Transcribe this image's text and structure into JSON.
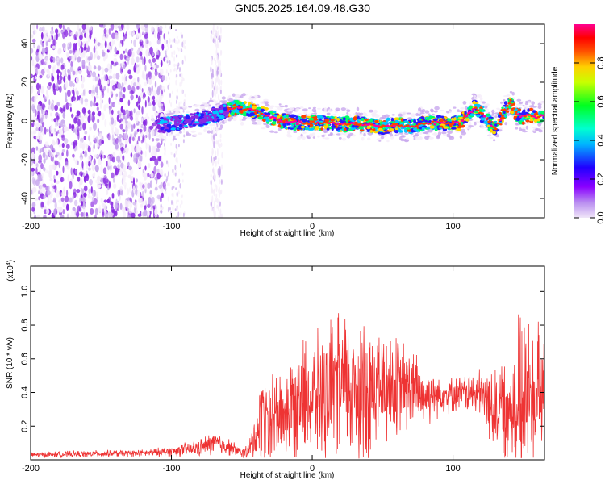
{
  "title": "GN05.2025.164.09.48.G30",
  "chart_data": [
    {
      "type": "heatmap",
      "xlabel": "Height of straight line (km)",
      "ylabel": "Frequency (Hz)",
      "xlim": [
        -200,
        165
      ],
      "ylim": [
        -50,
        50
      ],
      "xticks": [
        -200,
        -100,
        0,
        100
      ],
      "yticks": [
        -40,
        -20,
        0,
        20,
        40
      ],
      "colorbar": {
        "label": "Normalized spectral amplitude",
        "range": [
          0,
          1
        ],
        "ticks": [
          0.0,
          0.2,
          0.4,
          0.6,
          0.8
        ]
      },
      "ridge": {
        "x": [
          -105,
          -95,
          -85,
          -75,
          -65,
          -55,
          -45,
          -38,
          -30,
          -20,
          -10,
          0,
          10,
          20,
          30,
          40,
          50,
          60,
          70,
          80,
          90,
          100,
          105,
          110,
          115,
          120,
          125,
          130,
          135,
          140,
          145,
          150,
          155,
          160,
          165
        ],
        "freq": [
          -2,
          -1,
          0,
          2,
          4,
          7,
          6,
          5,
          2,
          0,
          -1,
          -1,
          -1,
          -2,
          -1,
          -2,
          -3,
          -2,
          -3,
          -1,
          -1,
          -1,
          -1,
          3,
          7,
          4,
          0,
          -4,
          3,
          9,
          4,
          2,
          3,
          2,
          3
        ]
      },
      "color_scale": [
        "#f5ecfa",
        "#c8a8ee",
        "#8a2be2",
        "#2a1bff",
        "#00c8ff",
        "#00ff66",
        "#ffd700",
        "#ff4000",
        "#ff00a0"
      ]
    },
    {
      "type": "line",
      "xlabel": "Height of straight line (km)",
      "ylabel": "SNR (10 * v/v)",
      "scale_note": "(x10",
      "scale_exp": "4",
      "xlim": [
        -200,
        165
      ],
      "ylim": [
        0,
        11500
      ],
      "xticks": [
        -200,
        -100,
        0,
        100
      ],
      "yticks": [
        2000,
        4000,
        6000,
        8000,
        10000
      ],
      "ytick_labels": [
        "0.2",
        "0.4",
        "0.6",
        "0.8",
        "1.0"
      ],
      "color": "#ee3333",
      "envelope": {
        "x": [
          -200,
          -160,
          -120,
          -100,
          -80,
          -70,
          -60,
          -50,
          -45,
          -40,
          -35,
          -30,
          -20,
          -10,
          0,
          10,
          20,
          30,
          40,
          50,
          60,
          70,
          80,
          90,
          100,
          110,
          120,
          130,
          140,
          150,
          160,
          165
        ],
        "mean": [
          300,
          350,
          400,
          500,
          700,
          1000,
          800,
          400,
          500,
          1500,
          2500,
          2800,
          2600,
          3500,
          3600,
          3800,
          4200,
          4500,
          4200,
          4400,
          4300,
          4200,
          3800,
          3900,
          3900,
          4000,
          3800,
          3000,
          3500,
          3800,
          3500,
          3500
        ],
        "amp": [
          150,
          200,
          200,
          300,
          500,
          700,
          500,
          300,
          500,
          1500,
          3000,
          2800,
          2500,
          3500,
          3500,
          3800,
          4500,
          4500,
          4000,
          3500,
          3000,
          2500,
          1800,
          1200,
          1000,
          1100,
          1500,
          2500,
          3500,
          5000,
          4500,
          4000
        ]
      }
    }
  ]
}
